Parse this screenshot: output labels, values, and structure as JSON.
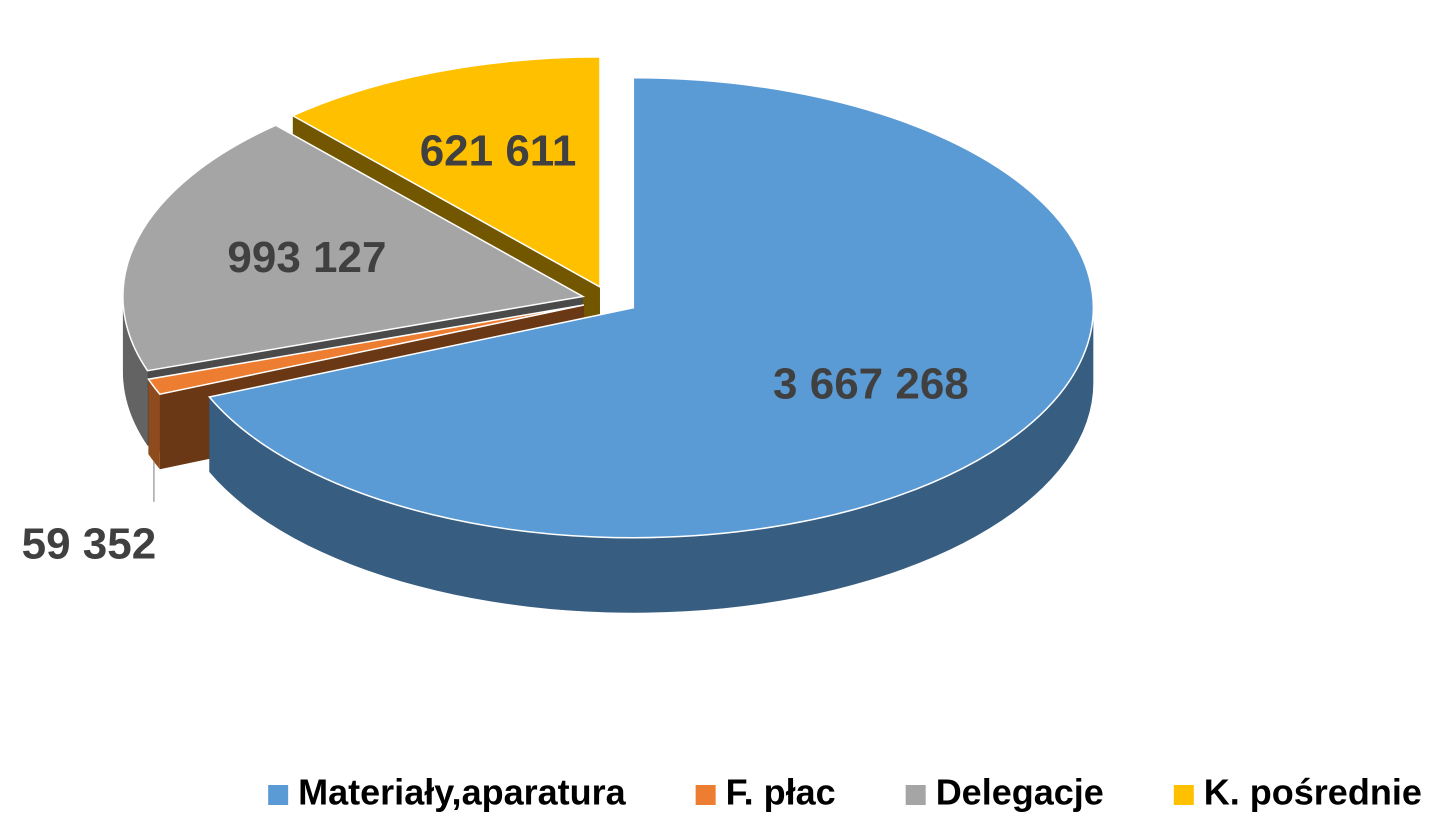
{
  "chart_data": {
    "type": "pie3d",
    "series": [
      {
        "name": "Materiały,aparatura",
        "color": "#5b9bd5",
        "values": [
          3667268
        ],
        "value_labels": [
          "3 667 268"
        ]
      },
      {
        "name": "F. płac",
        "color": "#ed7d31",
        "values": [
          59352
        ],
        "value_labels": [
          "59 352"
        ]
      },
      {
        "name": "Delegacje",
        "color": "#a5a5a5",
        "values": [
          993127
        ],
        "value_labels": [
          "993 127"
        ]
      },
      {
        "name": "K. pośrednie",
        "color": "#ffc000",
        "values": [
          621611
        ],
        "value_labels": [
          "621 611"
        ]
      }
    ],
    "legend": "bottom"
  }
}
